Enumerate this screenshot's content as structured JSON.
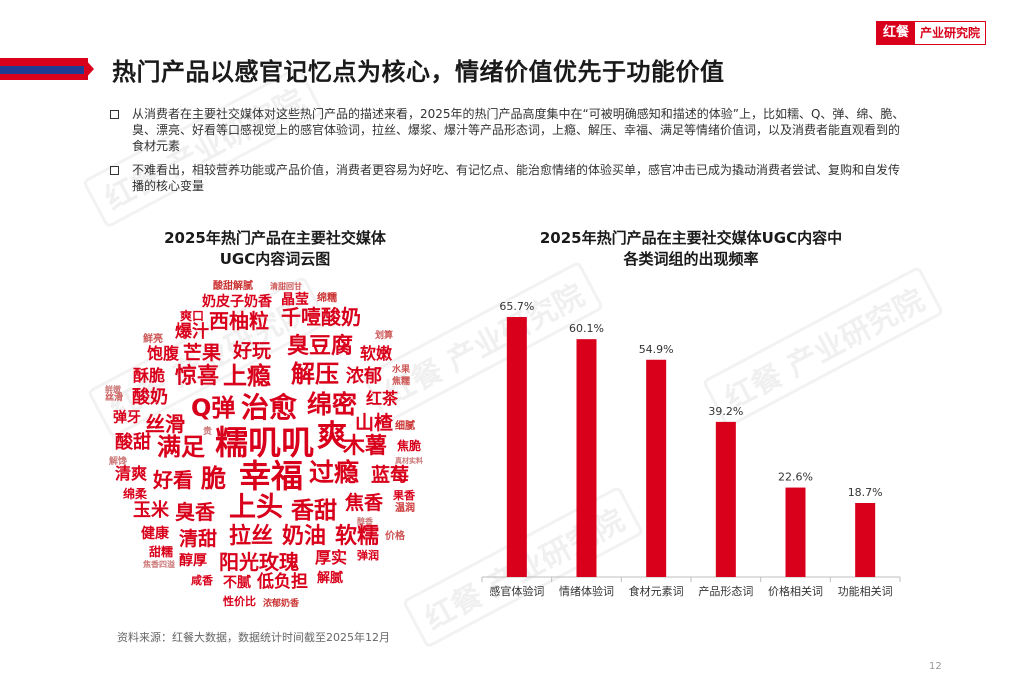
{
  "brand": {
    "mark": "红餐",
    "name": "产业研究院"
  },
  "title": "热门产品以感官记忆点为核心，情绪价值优先于功能价值",
  "bullets": [
    "从消费者在主要社交媒体对这些热门产品的描述来看，2025年的热门产品高度集中在“可被明确感知和描述的体验”上，比如糯、Q、弹、绵、脆、臭、漂亮、好看等口感视觉上的感官体验词，拉丝、爆浆、爆汁等产品形态词，上瘾、解压、幸福、满足等情绪价值词，以及消费者能直观看到的食材元素",
    "不难看出，相较营养功能或产品价值，消费者更容易为好吃、有记忆点、能治愈情绪的体验买单，感官冲击已成为撬动消费者尝试、复购和自发传播的核心变量"
  ],
  "wordcloud": {
    "title": [
      "2025年热门产品在主要社交媒体",
      "UGC内容词云图"
    ],
    "words": [
      "酸甜解腻",
      "清甜回甘",
      "绵糯",
      "奶皮子奶香",
      "晶莹",
      "爽口",
      "西柚粒",
      "千噎酸奶",
      "爆汁",
      "鲜亮",
      "划算",
      "饱腹",
      "芒果",
      "好玩",
      "臭豆腐",
      "软嫩",
      "酥脆",
      "惊喜",
      "上瘾",
      "解压",
      "浓郁",
      "水果",
      "焦糯",
      "丝滑",
      "鲜嫩",
      "酸奶",
      "Q弹",
      "治愈",
      "绵密",
      "红茶",
      "弹牙",
      "丝滑",
      "贵",
      "山楂",
      "细腻",
      "酸甜",
      "满足",
      "糯叽叽",
      "爽",
      "木薯",
      "焦脆",
      "解馋",
      "清爽",
      "好看",
      "脆",
      "幸福",
      "过瘾",
      "蓝莓",
      "真材实料",
      "绵柔",
      "果香",
      "玉米",
      "臭香",
      "上头",
      "香甜",
      "焦香",
      "温润",
      "健康",
      "清甜",
      "拉丝",
      "奶油",
      "软糯",
      "醇香",
      "价格",
      "甜糯",
      "焦香四溢",
      "醇厚",
      "阳光玫瑰",
      "厚实",
      "弹润",
      "咸香",
      "不腻",
      "低负担",
      "解腻",
      "性价比",
      "浓郁奶香"
    ]
  },
  "chart_data": {
    "type": "bar",
    "title": "2025年热门产品在主要社交媒体UGC内容中各类词组的出现频率",
    "categories": [
      "感官体验词",
      "情绪体验词",
      "食材元素词",
      "产品形态词",
      "价格相关词",
      "功能相关词"
    ],
    "values": [
      65.7,
      60.1,
      54.9,
      39.2,
      22.6,
      18.7
    ],
    "value_labels": [
      "65.7%",
      "60.1%",
      "54.9%",
      "39.2%",
      "22.6%",
      "18.7%"
    ],
    "ylim": [
      0,
      70
    ],
    "bar_color": "#d9001b"
  },
  "chart_title_lines": [
    "2025年热门产品在主要社交媒体UGC内容中",
    "各类词组的出现频率"
  ],
  "source": "资料来源：红餐大数据，数据统计时间截至2025年12月",
  "page_number": "12",
  "watermark": "红餐 产业研究院"
}
